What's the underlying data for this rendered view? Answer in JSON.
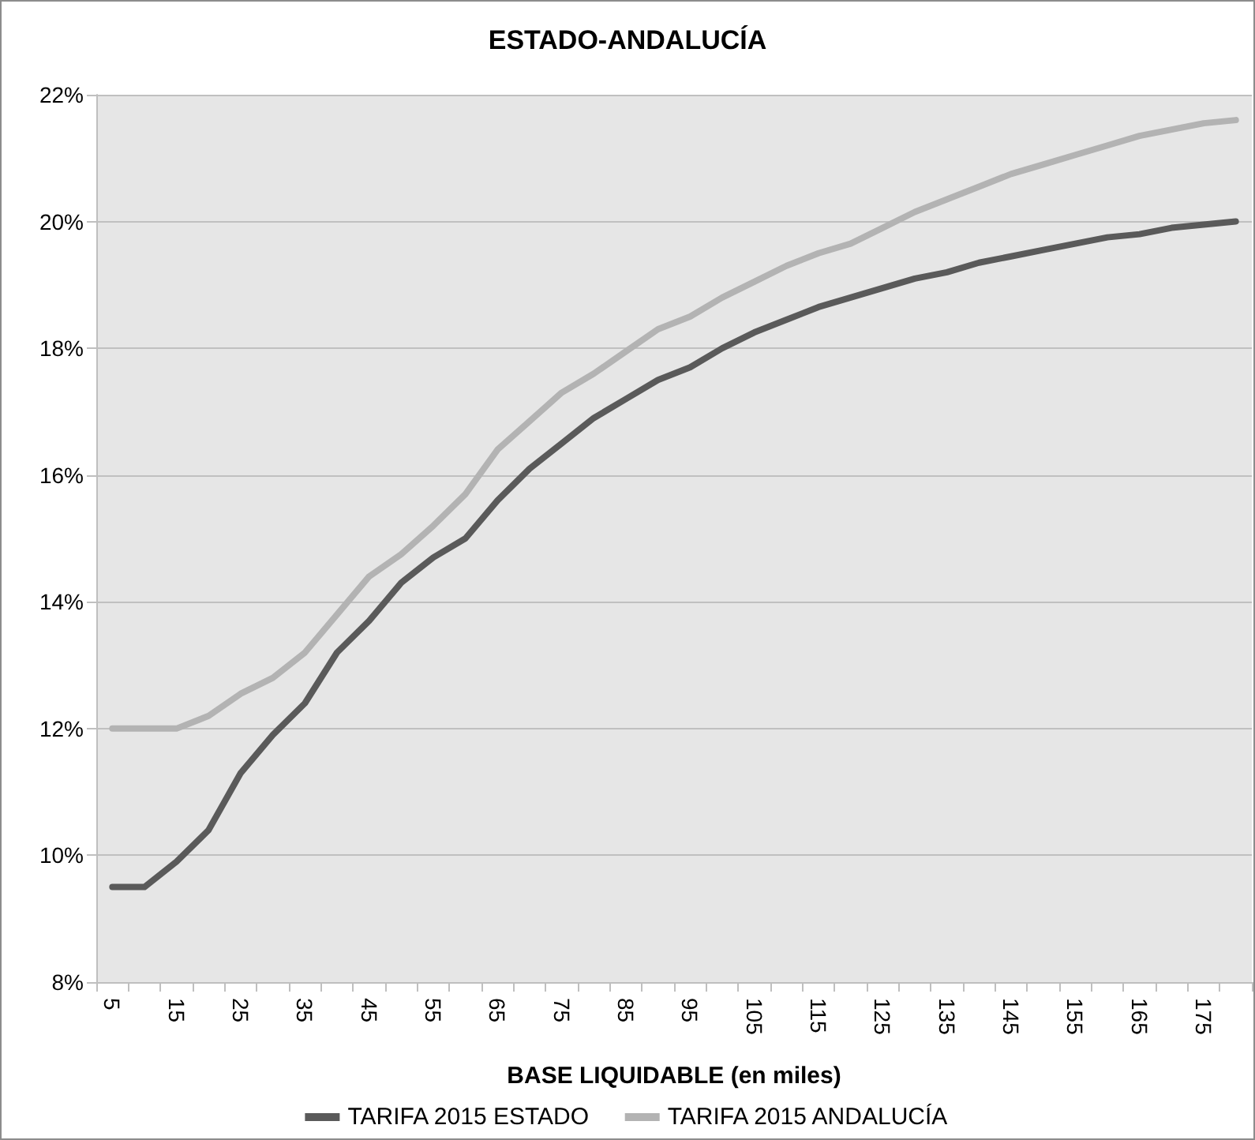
{
  "chart_data": {
    "type": "line",
    "title": "ESTADO-ANDALUCÍA",
    "xlabel": "BASE LIQUIDABLE (en miles)",
    "categories": [
      "5",
      null,
      "15",
      null,
      "25",
      null,
      "35",
      null,
      "45",
      null,
      "55",
      null,
      "65",
      null,
      "75",
      null,
      "85",
      null,
      "95",
      null,
      "105",
      null,
      "115",
      null,
      "125",
      null,
      "135",
      null,
      "145",
      null,
      "155",
      null,
      "165",
      null,
      "175",
      null
    ],
    "series": [
      {
        "name": "TARIFA 2015 ESTADO",
        "color": "#5a5a5a",
        "values": [
          9.5,
          9.5,
          9.9,
          10.4,
          11.3,
          11.9,
          12.4,
          13.2,
          13.7,
          14.3,
          14.7,
          15.0,
          15.6,
          16.1,
          16.5,
          16.9,
          17.2,
          17.5,
          17.7,
          18.0,
          18.25,
          18.45,
          18.65,
          18.8,
          18.95,
          19.1,
          19.2,
          19.35,
          19.45,
          19.55,
          19.65,
          19.75,
          19.8,
          19.9,
          19.95,
          20.0
        ]
      },
      {
        "name": "TARIFA 2015 ANDALUCÍA",
        "color": "#b3b3b3",
        "values": [
          12.0,
          12.0,
          12.0,
          12.2,
          12.55,
          12.8,
          13.2,
          13.8,
          14.4,
          14.75,
          15.2,
          15.7,
          16.4,
          16.85,
          17.3,
          17.6,
          17.95,
          18.3,
          18.5,
          18.8,
          19.05,
          19.3,
          19.5,
          19.65,
          19.9,
          20.15,
          20.35,
          20.55,
          20.75,
          20.9,
          21.05,
          21.2,
          21.35,
          21.45,
          21.55,
          21.6
        ]
      }
    ],
    "ylim": [
      8,
      22
    ],
    "yticks": [
      {
        "value": 8,
        "label": "8%"
      },
      {
        "value": 10,
        "label": "10%"
      },
      {
        "value": 12,
        "label": "12%"
      },
      {
        "value": 14,
        "label": "14%"
      },
      {
        "value": 16,
        "label": "16%"
      },
      {
        "value": 18,
        "label": "18%"
      },
      {
        "value": 20,
        "label": "20%"
      },
      {
        "value": 22,
        "label": "22%"
      }
    ],
    "grid": "y",
    "legend": "bottom",
    "marker": "none",
    "line_style": "solid"
  }
}
